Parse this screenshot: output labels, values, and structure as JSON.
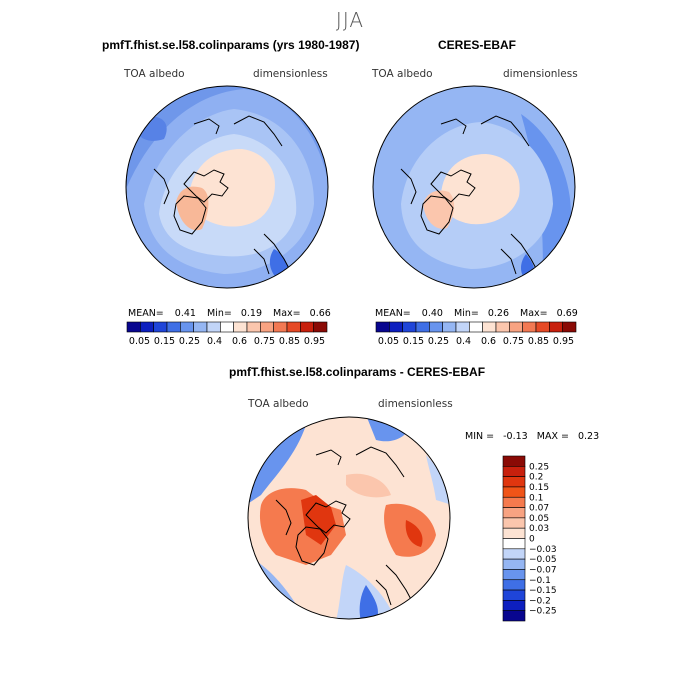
{
  "title": "JJA",
  "panels": [
    {
      "title": "pmfT.fhist.se.l58.colinparams (yrs 1980-1987)",
      "left_label": "TOA albedo",
      "right_label": "dimensionless",
      "mean_label": "MEAN=",
      "mean": "0.41",
      "min_label": "Min=",
      "min": "0.19",
      "max_label": "Max=",
      "max": "0.66"
    },
    {
      "title": "CERES-EBAF",
      "left_label": "TOA albedo",
      "right_label": "dimensionless",
      "mean_label": "MEAN=",
      "mean": "0.40",
      "min_label": "Min=",
      "min": "0.26",
      "max_label": "Max=",
      "max": "0.69"
    }
  ],
  "diff": {
    "title": "pmfT.fhist.se.l58.colinparams - CERES-EBAF",
    "left_label": "TOA albedo",
    "right_label": "dimensionless",
    "min_label": "MIN =",
    "min": "-0.13",
    "max_label": "MAX =",
    "max": "0.23"
  },
  "colorbar_abs": {
    "ticks": [
      "0.05",
      "0.15",
      "0.25",
      "0.4",
      "0.6",
      "0.75",
      "0.85",
      "0.95"
    ],
    "colors": [
      "#08068f",
      "#0d1fbf",
      "#1f45d9",
      "#3f6fe6",
      "#6894ee",
      "#95b6f3",
      "#c2d5f8",
      "#ffffff",
      "#fde3d3",
      "#fbc6ad",
      "#f8a382",
      "#f27953",
      "#e64a26",
      "#c8200d",
      "#8a0a05"
    ]
  },
  "colorbar_diff": {
    "ticks": [
      "0.25",
      "0.2",
      "0.15",
      "0.1",
      "0.07",
      "0.05",
      "0.03",
      "0",
      "-0.03",
      "-0.05",
      "-0.07",
      "-0.1",
      "-0.15",
      "-0.2",
      "-0.25"
    ],
    "colors": [
      "#8a0a05",
      "#c8200d",
      "#e0360f",
      "#f05418",
      "#f57a4e",
      "#f8a382",
      "#fbc6ad",
      "#fde3d3",
      "#ffffff",
      "#c2d5f8",
      "#95b6f3",
      "#6894ee",
      "#3f6fe6",
      "#1f45d9",
      "#0d1fbf",
      "#08068f"
    ]
  }
}
